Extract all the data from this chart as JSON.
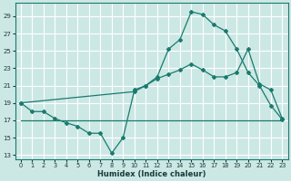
{
  "xlabel": "Humidex (Indice chaleur)",
  "bg_color": "#cce8e5",
  "line_color": "#1a7a6e",
  "grid_color": "#ffffff",
  "xlim": [
    -0.5,
    23.5
  ],
  "ylim": [
    12.5,
    30.5
  ],
  "yticks": [
    13,
    15,
    17,
    19,
    21,
    23,
    25,
    27,
    29
  ],
  "xticks": [
    0,
    1,
    2,
    3,
    4,
    5,
    6,
    7,
    8,
    9,
    10,
    11,
    12,
    13,
    14,
    15,
    16,
    17,
    18,
    19,
    20,
    21,
    22,
    23
  ],
  "line1_x": [
    0,
    1,
    2,
    3,
    4,
    5,
    6,
    7,
    8,
    9,
    10,
    11,
    12,
    13,
    14,
    15,
    16,
    17,
    18,
    19,
    20,
    21,
    22,
    23
  ],
  "line1_y": [
    19,
    18,
    18,
    17.2,
    16.7,
    16.3,
    15.5,
    15.5,
    13.2,
    15.0,
    20.5,
    21.0,
    22.0,
    25.2,
    26.3,
    29.5,
    29.2,
    28.0,
    27.3,
    25.2,
    22.5,
    21.0,
    18.7,
    17.1
  ],
  "line2_x": [
    0,
    10,
    11,
    12,
    13,
    14,
    15,
    16,
    17,
    18,
    19,
    20,
    21,
    22,
    23
  ],
  "line2_y": [
    19,
    20.3,
    21.0,
    21.8,
    22.3,
    22.8,
    23.5,
    22.8,
    22.0,
    22.0,
    22.5,
    25.2,
    21.2,
    20.5,
    17.2
  ],
  "line3_x": [
    0,
    1,
    2,
    3,
    4,
    5,
    6,
    7,
    8,
    9,
    10,
    11,
    12,
    13,
    14,
    15,
    16,
    17,
    18,
    19,
    20,
    21,
    22,
    23
  ],
  "line3_y": [
    17,
    17,
    17,
    17,
    17,
    17,
    17,
    17,
    17,
    17,
    17,
    17,
    17,
    17,
    17,
    17,
    17,
    17,
    17,
    17,
    17,
    17,
    17,
    17
  ]
}
